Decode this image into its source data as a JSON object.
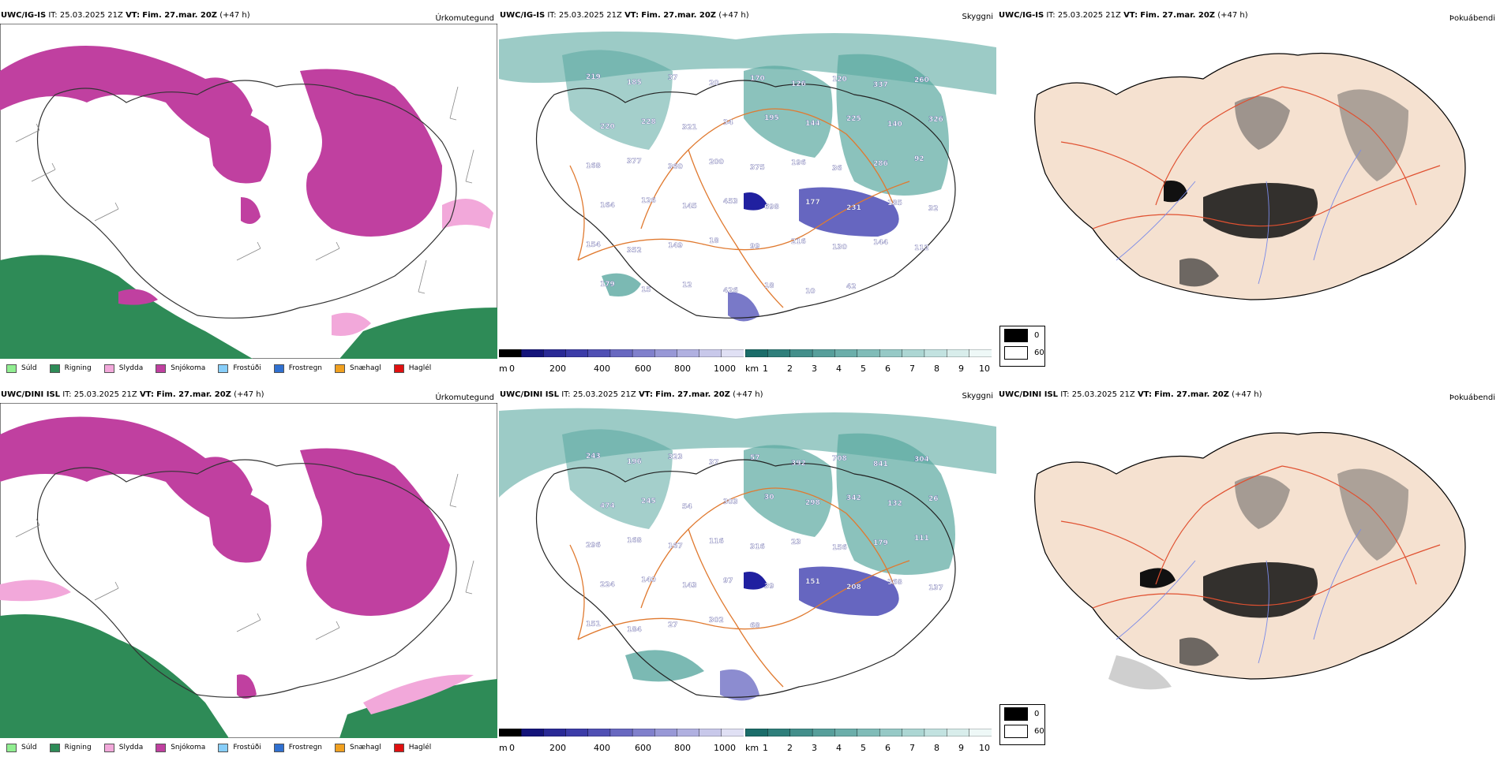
{
  "rows": [
    {
      "model": "UWC/IG-IS",
      "it_label": "IT:",
      "it": "25.03.2025 21Z",
      "vt_label": "VT:",
      "vt": "Fim. 27.mar. 20Z",
      "lead": "(+47 h)",
      "precip_type": {
        "title": "Úrkomutegund",
        "legend": [
          {
            "label": "Súld",
            "color": "#90ee90"
          },
          {
            "label": "Rigning",
            "color": "#2e8b57"
          },
          {
            "label": "Slydda",
            "color": "#f2a8da"
          },
          {
            "label": "Snjókoma",
            "color": "#c040a0"
          },
          {
            "label": "Frostúði",
            "color": "#87cefa"
          },
          {
            "label": "Frostregn",
            "color": "#3070d0"
          },
          {
            "label": "Snæhagl",
            "color": "#f0a020"
          },
          {
            "label": "Haglél",
            "color": "#e01010"
          }
        ]
      },
      "visibility": {
        "title": "Skyggni",
        "labels": [
          "219",
          "185",
          "37",
          "20",
          "170",
          "126",
          "120",
          "337",
          "260",
          "220",
          "228",
          "321",
          "34",
          "195",
          "144",
          "225",
          "140",
          "326",
          "168",
          "377",
          "360",
          "200",
          "375",
          "196",
          "36",
          "286",
          "92",
          "164",
          "126",
          "145",
          "453",
          "698",
          "177",
          "231",
          "185",
          "32",
          "154",
          "352",
          "149",
          "18",
          "99",
          "216",
          "130",
          "144",
          "112",
          "179",
          "15",
          "12",
          "426",
          "18",
          "10",
          "42"
        ]
      },
      "cloud": {
        "title": "Þokuábendi"
      }
    },
    {
      "model": "UWC/DINI ISL",
      "it_label": "IT:",
      "it": "25.03.2025 21Z",
      "vt_label": "VT:",
      "vt": "Fim. 27.mar. 20Z",
      "lead": "(+47 h)",
      "precip_type": {
        "title": "Úrkomutegund",
        "legend": [
          {
            "label": "Súld",
            "color": "#90ee90"
          },
          {
            "label": "Rigning",
            "color": "#2e8b57"
          },
          {
            "label": "Slydda",
            "color": "#f2a8da"
          },
          {
            "label": "Snjókoma",
            "color": "#c040a0"
          },
          {
            "label": "Frostúði",
            "color": "#87cefa"
          },
          {
            "label": "Frostregn",
            "color": "#3070d0"
          },
          {
            "label": "Snæhagl",
            "color": "#f0a020"
          },
          {
            "label": "Haglél",
            "color": "#e01010"
          }
        ]
      },
      "visibility": {
        "title": "Skyggni",
        "labels": [
          "243",
          "196",
          "323",
          "37",
          "57",
          "392",
          "708",
          "841",
          "304",
          "474",
          "245",
          "54",
          "303",
          "30",
          "298",
          "342",
          "132",
          "26",
          "296",
          "168",
          "167",
          "116",
          "316",
          "23",
          "156",
          "179",
          "111",
          "224",
          "140",
          "143",
          "97",
          "39",
          "151",
          "208",
          "368",
          "137",
          "151",
          "184",
          "27",
          "302",
          "68"
        ]
      },
      "cloud": {
        "title": "Þokuábendi"
      }
    }
  ],
  "colorbars": {
    "height_unit": "m",
    "height_ticks": [
      "0",
      "200",
      "400",
      "600",
      "800",
      "1000"
    ],
    "height_colors": [
      "#000000",
      "#14147a",
      "#2a2a96",
      "#3c3ca8",
      "#5050b4",
      "#6868c0",
      "#8080cc",
      "#9898d6",
      "#b0b0e0",
      "#c8c8ea",
      "#e0e0f4"
    ],
    "vis_unit": "km",
    "vis_ticks": [
      "1",
      "2",
      "3",
      "4",
      "5",
      "6",
      "7",
      "8",
      "9",
      "10"
    ],
    "vis_colors": [
      "#1b6d6a",
      "#2f7f7b",
      "#438f8b",
      "#579f9b",
      "#6baeaa",
      "#80bcb8",
      "#96c9c6",
      "#acd6d3",
      "#c2e2e0",
      "#d8edeb",
      "#eef8f7"
    ]
  },
  "cloud_key": {
    "items": [
      {
        "label": "0",
        "color": "#000000"
      },
      {
        "label": "60",
        "color": "#ffffff"
      }
    ]
  },
  "colors": {
    "snow": "#c040a0",
    "rain": "#2e8b57",
    "sleet": "#f2a8da",
    "fog_green": "#5aa8a0",
    "land": "#f5e1d0",
    "road": "#e07a30",
    "rivers": "#7a8ae8"
  }
}
